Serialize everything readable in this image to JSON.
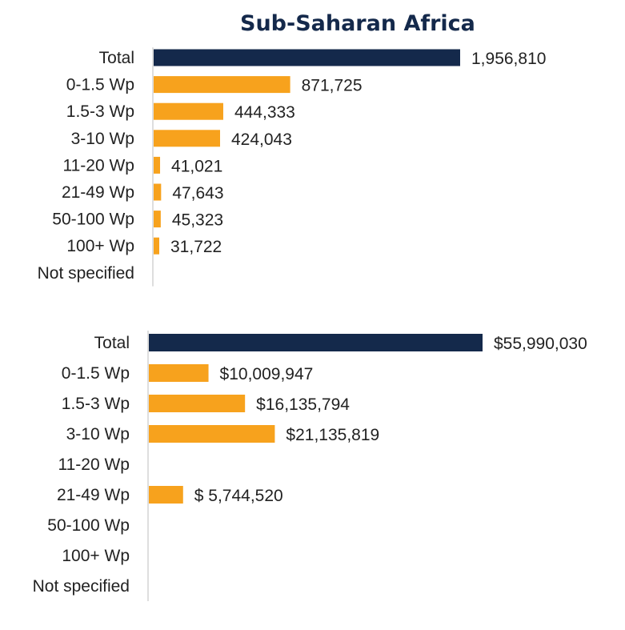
{
  "title": "Sub-Saharan Africa",
  "colors": {
    "total": "#14294b",
    "category": "#f7a21d"
  },
  "chart_data": [
    {
      "type": "bar",
      "orientation": "horizontal",
      "categories": [
        "Total",
        "0-1.5 Wp",
        "1.5-3 Wp",
        "3-10 Wp",
        "11-20 Wp",
        "21-49 Wp",
        "50-100 Wp",
        "100+ Wp",
        "Not specified"
      ],
      "values": [
        1956810,
        871725,
        444333,
        424043,
        41021,
        47643,
        45323,
        31722,
        null
      ],
      "labels": [
        "1,956,810",
        "871,725",
        "444,333",
        "424,043",
        "41,021",
        "47,643",
        "45,323",
        "31,722",
        ""
      ]
    },
    {
      "type": "bar",
      "orientation": "horizontal",
      "categories": [
        "Total",
        "0-1.5 Wp",
        "1.5-3 Wp",
        "3-10 Wp",
        "11-20 Wp",
        "21-49 Wp",
        "50-100 Wp",
        "100+ Wp",
        "Not specified"
      ],
      "values": [
        55990030,
        10009947,
        16135794,
        21135819,
        null,
        5744520,
        null,
        null,
        null
      ],
      "labels": [
        "$55,990,030",
        "$10,009,947",
        "$16,135,794",
        "$21,135,819",
        "",
        "$ 5,744,520",
        "",
        "",
        ""
      ]
    }
  ]
}
